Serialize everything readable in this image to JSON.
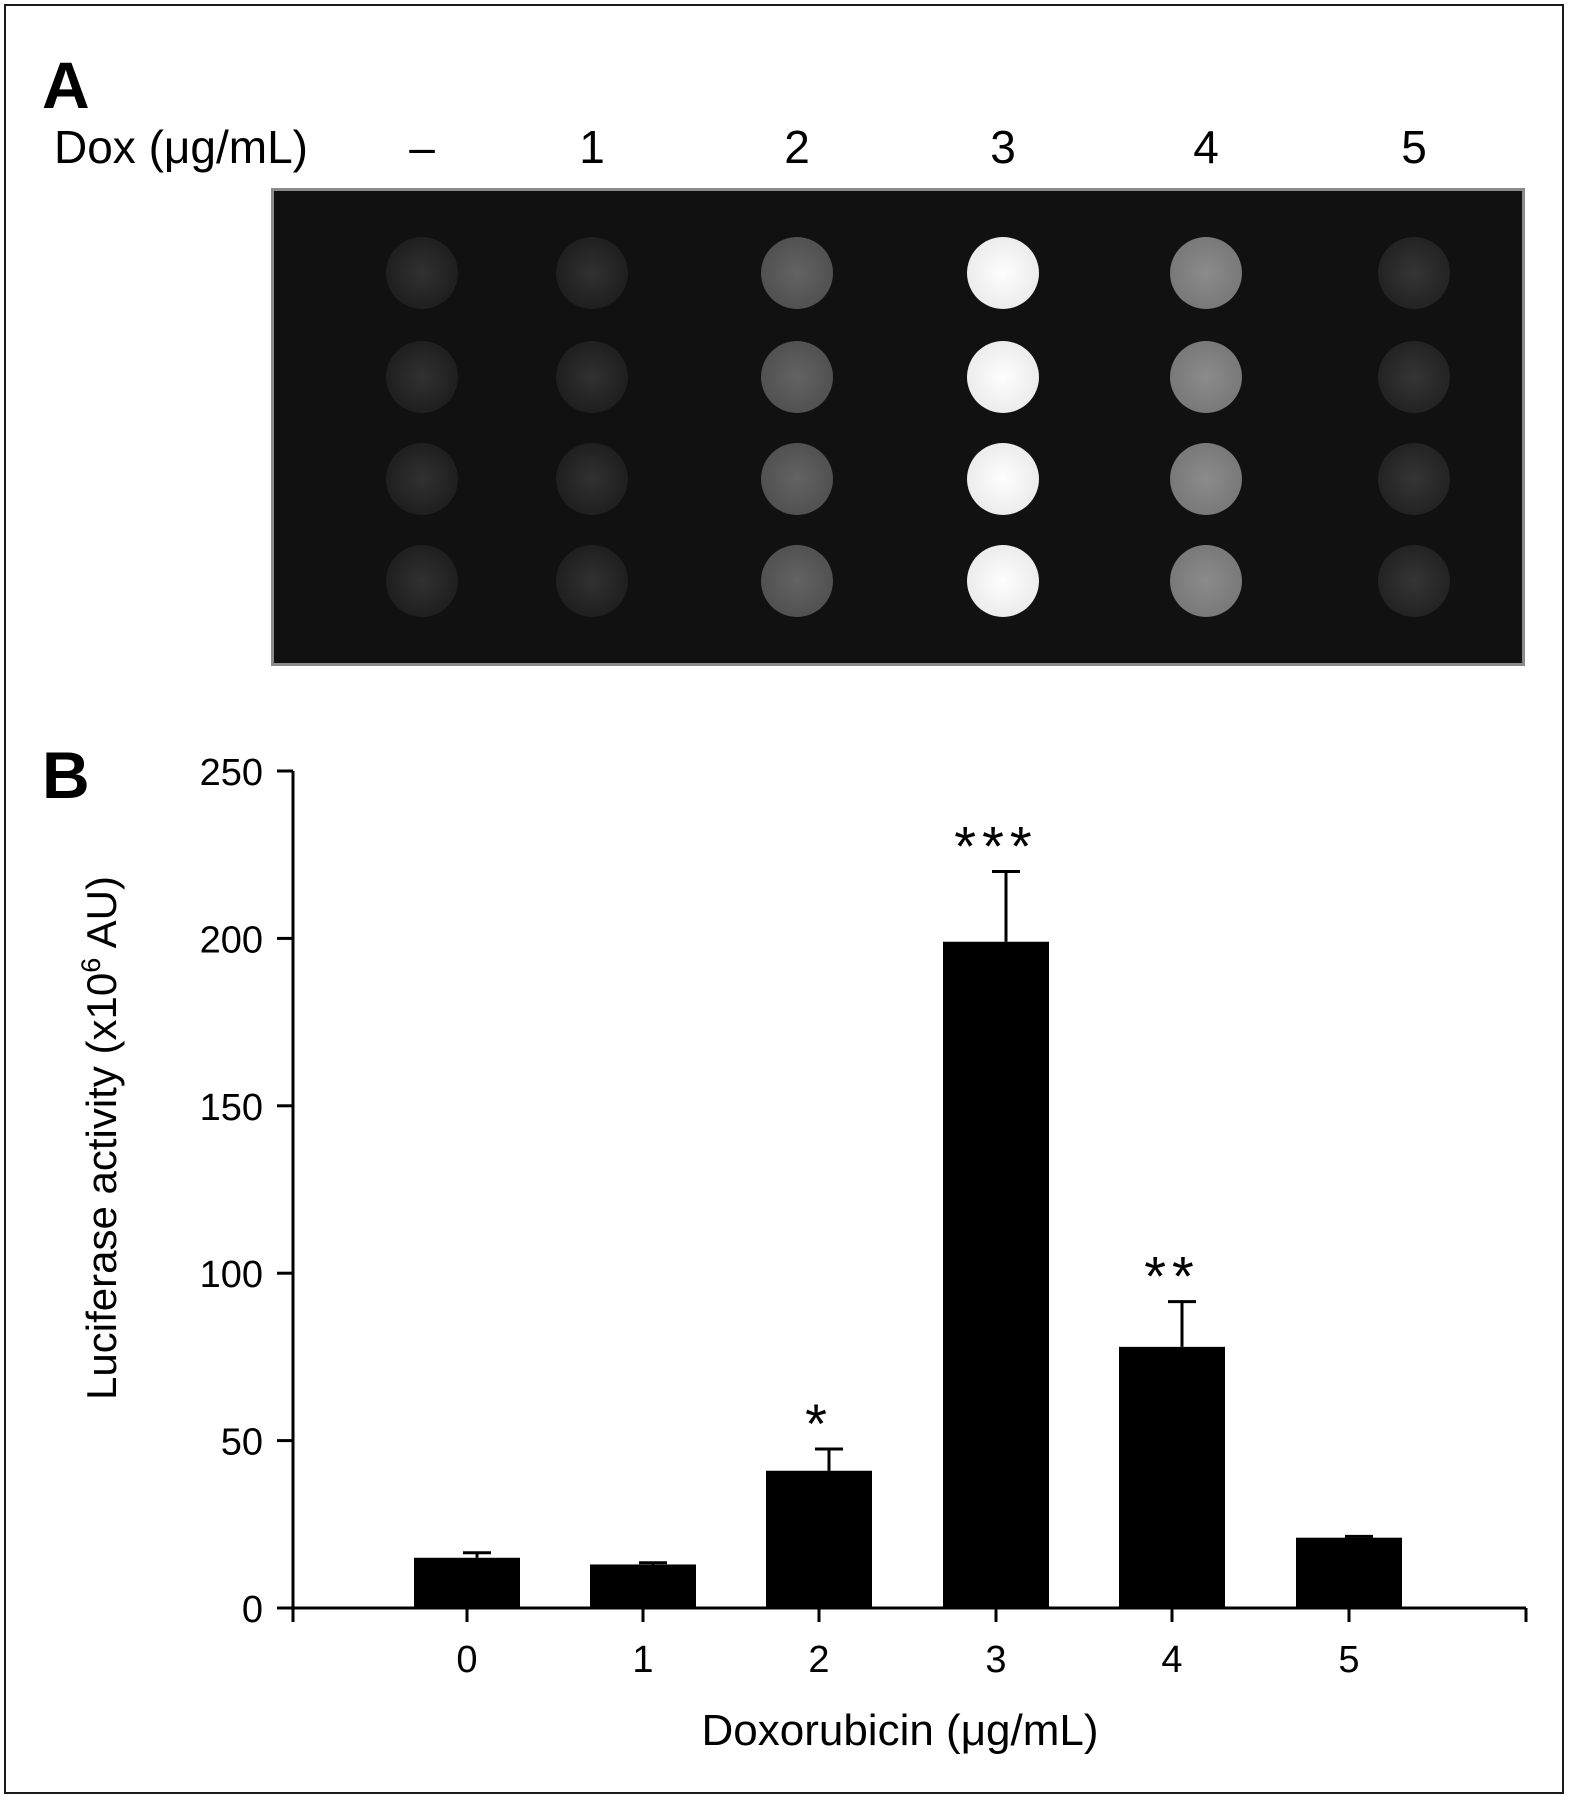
{
  "panel_a": {
    "letter": "A",
    "row_label": "Dox (μg/mL)",
    "concentrations": [
      "–",
      "1",
      "2",
      "3",
      "4",
      "5"
    ],
    "spot_rows": 4,
    "spot_brightness_by_column": [
      0.06,
      0.06,
      0.28,
      0.95,
      0.45,
      0.08
    ],
    "blot_background": "#111111",
    "blot_border_color": "#8a8a8a"
  },
  "panel_b": {
    "letter": "B"
  },
  "chart_data": {
    "type": "bar",
    "categories": [
      "0",
      "1",
      "2",
      "3",
      "4",
      "5"
    ],
    "values": [
      15,
      13,
      41,
      199,
      78,
      21
    ],
    "errors": [
      1.5,
      0.5,
      6.5,
      21,
      13.5,
      0.4
    ],
    "significance": [
      "",
      "",
      "*",
      "***",
      "**",
      ""
    ],
    "xlabel": "Doxorubicin (μg/mL)",
    "ylabel": "Luciferase activity (x10",
    "ylabel_superscript": "6",
    "ylabel_suffix": " AU)",
    "ylim": [
      0,
      250
    ],
    "yticks": [
      0,
      50,
      100,
      150,
      200,
      250
    ],
    "bar_color": "#000000",
    "grid": false,
    "legend": "none"
  }
}
